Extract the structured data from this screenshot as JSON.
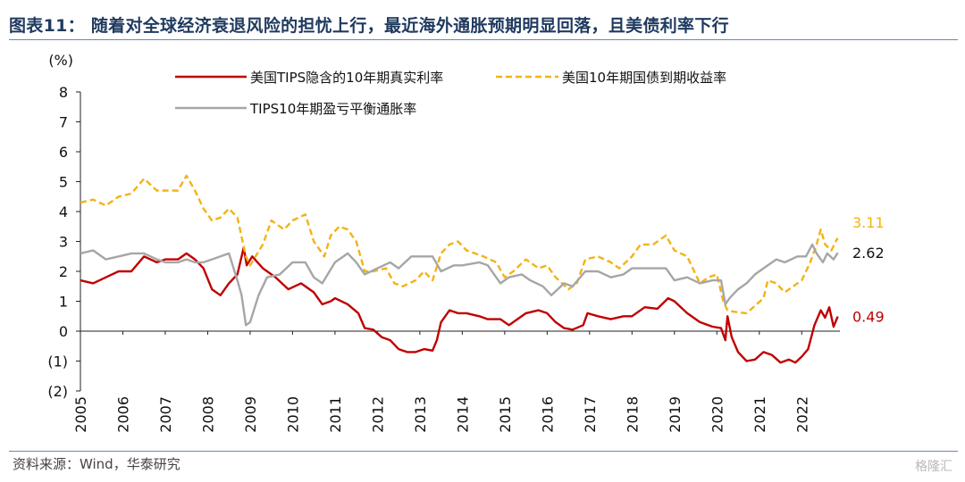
{
  "header": {
    "title": "图表11：  随着对全球经济衰退风险的担忧上行，最近海外通胀预期明显回落，且美债利率下行"
  },
  "footer": {
    "source": "资料来源：Wind，华泰研究",
    "watermark": "格隆汇"
  },
  "chart_data": {
    "type": "line",
    "title": "",
    "ylabel": "(%)",
    "xlabel": "",
    "ylim": [
      -2,
      8
    ],
    "xlim": [
      2005.0,
      2022.9
    ],
    "x_ticks": [
      "2005",
      "2006",
      "2007",
      "2008",
      "2009",
      "2010",
      "2011",
      "2012",
      "2013",
      "2014",
      "2015",
      "2016",
      "2017",
      "2018",
      "2019",
      "2020",
      "2021",
      "2022"
    ],
    "y_ticks": [
      "8",
      "7",
      "6",
      "5",
      "4",
      "3",
      "2",
      "1",
      "0",
      "(1)",
      "(2)"
    ],
    "grid": false,
    "legend": "top",
    "series": [
      {
        "name": "美国TIPS隐含的10年期真实利率",
        "color": "#c00000",
        "style": "solid",
        "end_label": "0.49",
        "points": [
          [
            2005.0,
            1.7
          ],
          [
            2005.3,
            1.6
          ],
          [
            2005.6,
            1.8
          ],
          [
            2005.9,
            2.0
          ],
          [
            2006.2,
            2.0
          ],
          [
            2006.5,
            2.5
          ],
          [
            2006.8,
            2.3
          ],
          [
            2007.0,
            2.4
          ],
          [
            2007.3,
            2.4
          ],
          [
            2007.5,
            2.6
          ],
          [
            2007.7,
            2.4
          ],
          [
            2007.9,
            2.1
          ],
          [
            2008.1,
            1.4
          ],
          [
            2008.3,
            1.2
          ],
          [
            2008.5,
            1.6
          ],
          [
            2008.7,
            1.9
          ],
          [
            2008.85,
            2.8
          ],
          [
            2008.92,
            2.2
          ],
          [
            2009.05,
            2.5
          ],
          [
            2009.3,
            2.1
          ],
          [
            2009.6,
            1.8
          ],
          [
            2009.9,
            1.4
          ],
          [
            2010.2,
            1.6
          ],
          [
            2010.5,
            1.3
          ],
          [
            2010.7,
            0.9
          ],
          [
            2010.9,
            1.0
          ],
          [
            2011.0,
            1.1
          ],
          [
            2011.3,
            0.9
          ],
          [
            2011.55,
            0.6
          ],
          [
            2011.7,
            0.1
          ],
          [
            2011.9,
            0.05
          ],
          [
            2012.1,
            -0.2
          ],
          [
            2012.3,
            -0.3
          ],
          [
            2012.5,
            -0.6
          ],
          [
            2012.7,
            -0.7
          ],
          [
            2012.9,
            -0.7
          ],
          [
            2013.1,
            -0.6
          ],
          [
            2013.3,
            -0.65
          ],
          [
            2013.4,
            -0.3
          ],
          [
            2013.5,
            0.3
          ],
          [
            2013.7,
            0.7
          ],
          [
            2013.9,
            0.6
          ],
          [
            2014.1,
            0.6
          ],
          [
            2014.4,
            0.5
          ],
          [
            2014.6,
            0.4
          ],
          [
            2014.9,
            0.4
          ],
          [
            2015.1,
            0.2
          ],
          [
            2015.3,
            0.4
          ],
          [
            2015.5,
            0.6
          ],
          [
            2015.8,
            0.7
          ],
          [
            2016.0,
            0.6
          ],
          [
            2016.2,
            0.3
          ],
          [
            2016.4,
            0.1
          ],
          [
            2016.6,
            0.05
          ],
          [
            2016.85,
            0.2
          ],
          [
            2016.95,
            0.6
          ],
          [
            2017.2,
            0.5
          ],
          [
            2017.5,
            0.4
          ],
          [
            2017.8,
            0.5
          ],
          [
            2018.0,
            0.5
          ],
          [
            2018.3,
            0.8
          ],
          [
            2018.6,
            0.75
          ],
          [
            2018.85,
            1.1
          ],
          [
            2019.0,
            1.0
          ],
          [
            2019.3,
            0.6
          ],
          [
            2019.6,
            0.3
          ],
          [
            2019.9,
            0.15
          ],
          [
            2020.1,
            0.1
          ],
          [
            2020.2,
            -0.3
          ],
          [
            2020.25,
            0.5
          ],
          [
            2020.35,
            -0.2
          ],
          [
            2020.5,
            -0.7
          ],
          [
            2020.7,
            -1.0
          ],
          [
            2020.9,
            -0.95
          ],
          [
            2021.1,
            -0.7
          ],
          [
            2021.3,
            -0.8
          ],
          [
            2021.5,
            -1.05
          ],
          [
            2021.7,
            -0.95
          ],
          [
            2021.85,
            -1.05
          ],
          [
            2022.0,
            -0.85
          ],
          [
            2022.15,
            -0.6
          ],
          [
            2022.3,
            0.2
          ],
          [
            2022.45,
            0.7
          ],
          [
            2022.55,
            0.45
          ],
          [
            2022.65,
            0.8
          ],
          [
            2022.75,
            0.15
          ],
          [
            2022.85,
            0.49
          ]
        ]
      },
      {
        "name": "美国10年期国债到期收益率",
        "color": "#f2b316",
        "style": "dashed",
        "end_label": "3.11",
        "points": [
          [
            2005.0,
            4.3
          ],
          [
            2005.3,
            4.4
          ],
          [
            2005.6,
            4.2
          ],
          [
            2005.9,
            4.5
          ],
          [
            2006.2,
            4.6
          ],
          [
            2006.5,
            5.1
          ],
          [
            2006.8,
            4.7
          ],
          [
            2007.0,
            4.7
          ],
          [
            2007.3,
            4.7
          ],
          [
            2007.5,
            5.2
          ],
          [
            2007.7,
            4.7
          ],
          [
            2007.9,
            4.1
          ],
          [
            2008.1,
            3.7
          ],
          [
            2008.3,
            3.8
          ],
          [
            2008.5,
            4.1
          ],
          [
            2008.7,
            3.8
          ],
          [
            2008.9,
            2.5
          ],
          [
            2009.0,
            2.2
          ],
          [
            2009.3,
            2.9
          ],
          [
            2009.5,
            3.7
          ],
          [
            2009.8,
            3.4
          ],
          [
            2010.0,
            3.7
          ],
          [
            2010.3,
            3.9
          ],
          [
            2010.5,
            3.0
          ],
          [
            2010.75,
            2.5
          ],
          [
            2010.9,
            3.2
          ],
          [
            2011.1,
            3.5
          ],
          [
            2011.3,
            3.4
          ],
          [
            2011.5,
            3.0
          ],
          [
            2011.7,
            2.0
          ],
          [
            2011.9,
            2.0
          ],
          [
            2012.2,
            2.1
          ],
          [
            2012.4,
            1.6
          ],
          [
            2012.6,
            1.5
          ],
          [
            2012.9,
            1.7
          ],
          [
            2013.1,
            2.0
          ],
          [
            2013.3,
            1.7
          ],
          [
            2013.5,
            2.6
          ],
          [
            2013.7,
            2.9
          ],
          [
            2013.9,
            3.0
          ],
          [
            2014.1,
            2.7
          ],
          [
            2014.5,
            2.5
          ],
          [
            2014.8,
            2.3
          ],
          [
            2015.0,
            1.8
          ],
          [
            2015.2,
            2.0
          ],
          [
            2015.5,
            2.4
          ],
          [
            2015.8,
            2.1
          ],
          [
            2016.0,
            2.2
          ],
          [
            2016.2,
            1.8
          ],
          [
            2016.5,
            1.4
          ],
          [
            2016.7,
            1.6
          ],
          [
            2016.9,
            2.4
          ],
          [
            2017.2,
            2.5
          ],
          [
            2017.5,
            2.3
          ],
          [
            2017.7,
            2.1
          ],
          [
            2018.0,
            2.5
          ],
          [
            2018.2,
            2.9
          ],
          [
            2018.5,
            2.9
          ],
          [
            2018.8,
            3.2
          ],
          [
            2019.0,
            2.7
          ],
          [
            2019.3,
            2.5
          ],
          [
            2019.6,
            1.6
          ],
          [
            2019.8,
            1.8
          ],
          [
            2020.0,
            1.9
          ],
          [
            2020.15,
            1.0
          ],
          [
            2020.25,
            0.7
          ],
          [
            2020.4,
            0.65
          ],
          [
            2020.7,
            0.6
          ],
          [
            2020.9,
            0.85
          ],
          [
            2021.1,
            1.1
          ],
          [
            2021.2,
            1.7
          ],
          [
            2021.4,
            1.6
          ],
          [
            2021.6,
            1.3
          ],
          [
            2021.8,
            1.5
          ],
          [
            2022.0,
            1.7
          ],
          [
            2022.2,
            2.3
          ],
          [
            2022.35,
            2.9
          ],
          [
            2022.45,
            3.4
          ],
          [
            2022.55,
            2.9
          ],
          [
            2022.7,
            2.7
          ],
          [
            2022.8,
            3.0
          ],
          [
            2022.85,
            3.11
          ]
        ]
      },
      {
        "name": "TIPS10年期盈亏平衡通胀率",
        "color": "#a6a6a6",
        "style": "solid",
        "end_label": "2.62",
        "points": [
          [
            2005.0,
            2.6
          ],
          [
            2005.3,
            2.7
          ],
          [
            2005.6,
            2.4
          ],
          [
            2005.9,
            2.5
          ],
          [
            2006.2,
            2.6
          ],
          [
            2006.5,
            2.6
          ],
          [
            2006.8,
            2.4
          ],
          [
            2007.0,
            2.3
          ],
          [
            2007.3,
            2.3
          ],
          [
            2007.5,
            2.4
          ],
          [
            2007.7,
            2.3
          ],
          [
            2007.9,
            2.3
          ],
          [
            2008.1,
            2.4
          ],
          [
            2008.3,
            2.5
          ],
          [
            2008.5,
            2.6
          ],
          [
            2008.7,
            1.7
          ],
          [
            2008.8,
            1.2
          ],
          [
            2008.9,
            0.2
          ],
          [
            2009.0,
            0.3
          ],
          [
            2009.2,
            1.2
          ],
          [
            2009.4,
            1.8
          ],
          [
            2009.7,
            1.9
          ],
          [
            2010.0,
            2.3
          ],
          [
            2010.3,
            2.3
          ],
          [
            2010.5,
            1.8
          ],
          [
            2010.7,
            1.6
          ],
          [
            2011.0,
            2.3
          ],
          [
            2011.3,
            2.6
          ],
          [
            2011.5,
            2.3
          ],
          [
            2011.7,
            1.9
          ],
          [
            2012.0,
            2.1
          ],
          [
            2012.3,
            2.3
          ],
          [
            2012.5,
            2.1
          ],
          [
            2012.8,
            2.5
          ],
          [
            2013.0,
            2.5
          ],
          [
            2013.3,
            2.5
          ],
          [
            2013.5,
            2.0
          ],
          [
            2013.8,
            2.2
          ],
          [
            2014.0,
            2.2
          ],
          [
            2014.4,
            2.3
          ],
          [
            2014.6,
            2.2
          ],
          [
            2014.9,
            1.6
          ],
          [
            2015.1,
            1.8
          ],
          [
            2015.4,
            1.9
          ],
          [
            2015.6,
            1.7
          ],
          [
            2015.9,
            1.5
          ],
          [
            2016.1,
            1.2
          ],
          [
            2016.4,
            1.6
          ],
          [
            2016.6,
            1.5
          ],
          [
            2016.9,
            2.0
          ],
          [
            2017.2,
            2.0
          ],
          [
            2017.5,
            1.8
          ],
          [
            2017.8,
            1.9
          ],
          [
            2018.0,
            2.1
          ],
          [
            2018.3,
            2.1
          ],
          [
            2018.6,
            2.1
          ],
          [
            2018.8,
            2.1
          ],
          [
            2019.0,
            1.7
          ],
          [
            2019.3,
            1.8
          ],
          [
            2019.6,
            1.6
          ],
          [
            2019.9,
            1.7
          ],
          [
            2020.1,
            1.7
          ],
          [
            2020.2,
            0.9
          ],
          [
            2020.3,
            1.1
          ],
          [
            2020.5,
            1.4
          ],
          [
            2020.7,
            1.6
          ],
          [
            2020.9,
            1.9
          ],
          [
            2021.1,
            2.1
          ],
          [
            2021.4,
            2.4
          ],
          [
            2021.6,
            2.3
          ],
          [
            2021.9,
            2.5
          ],
          [
            2022.1,
            2.5
          ],
          [
            2022.25,
            2.9
          ],
          [
            2022.35,
            2.6
          ],
          [
            2022.5,
            2.3
          ],
          [
            2022.6,
            2.6
          ],
          [
            2022.75,
            2.4
          ],
          [
            2022.85,
            2.62
          ]
        ]
      }
    ]
  }
}
